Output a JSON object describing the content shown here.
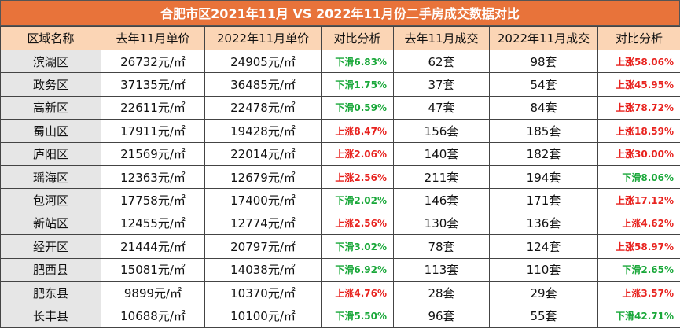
{
  "header": {
    "title": "合肥市区2021年11月 VS 2022年11月份二手房成交数据对比"
  },
  "table": {
    "columns": [
      "区域名称",
      "去年11月单价",
      "2022年11月单价",
      "对比分析",
      "去年11月成交",
      "2022年11月成交",
      "对比分析"
    ],
    "rows": [
      [
        "滨湖区",
        "26732元/㎡",
        "24905元/㎡",
        "下滑6.83%",
        "62套",
        "98套",
        "上涨58.06%"
      ],
      [
        "政务区",
        "37135元/㎡",
        "36485元/㎡",
        "下滑1.75%",
        "37套",
        "54套",
        "上涨45.95%"
      ],
      [
        "高新区",
        "22611元/㎡",
        "22478元/㎡",
        "下滑0.59%",
        "47套",
        "84套",
        "上涨78.72%"
      ],
      [
        "蜀山区",
        "17911元/㎡",
        "19428元/㎡",
        "上涨8.47%",
        "156套",
        "185套",
        "上涨18.59%"
      ],
      [
        "庐阳区",
        "21569元/㎡",
        "22014元/㎡",
        "上涨2.06%",
        "140套",
        "182套",
        "上涨30.00%"
      ],
      [
        "瑶海区",
        "12363元/㎡",
        "12679元/㎡",
        "上涨2.56%",
        "211套",
        "194套",
        "下滑8.06%"
      ],
      [
        "包河区",
        "17758元/㎡",
        "17400元/㎡",
        "下滑2.02%",
        "146套",
        "171套",
        "上涨17.12%"
      ],
      [
        "新站区",
        "12455元/㎡",
        "12774元/㎡",
        "上涨2.56%",
        "130套",
        "136套",
        "上涨4.62%"
      ],
      [
        "经开区",
        "21444元/㎡",
        "20797元/㎡",
        "下滑3.02%",
        "78套",
        "124套",
        "上涨58.97%"
      ],
      [
        "肥西县",
        "15081元/㎡",
        "14038元/㎡",
        "下滑6.92%",
        "113套",
        "110套",
        "下滑2.65%"
      ],
      [
        "肥东县",
        "9899元/㎡",
        "10370元/㎡",
        "上涨4.76%",
        "28套",
        "29套",
        "上涨3.57%"
      ],
      [
        "长丰县",
        "10688元/㎡",
        "10100元/㎡",
        "下滑5.50%",
        "96套",
        "55套",
        "下滑42.71%"
      ]
    ]
  }
}
